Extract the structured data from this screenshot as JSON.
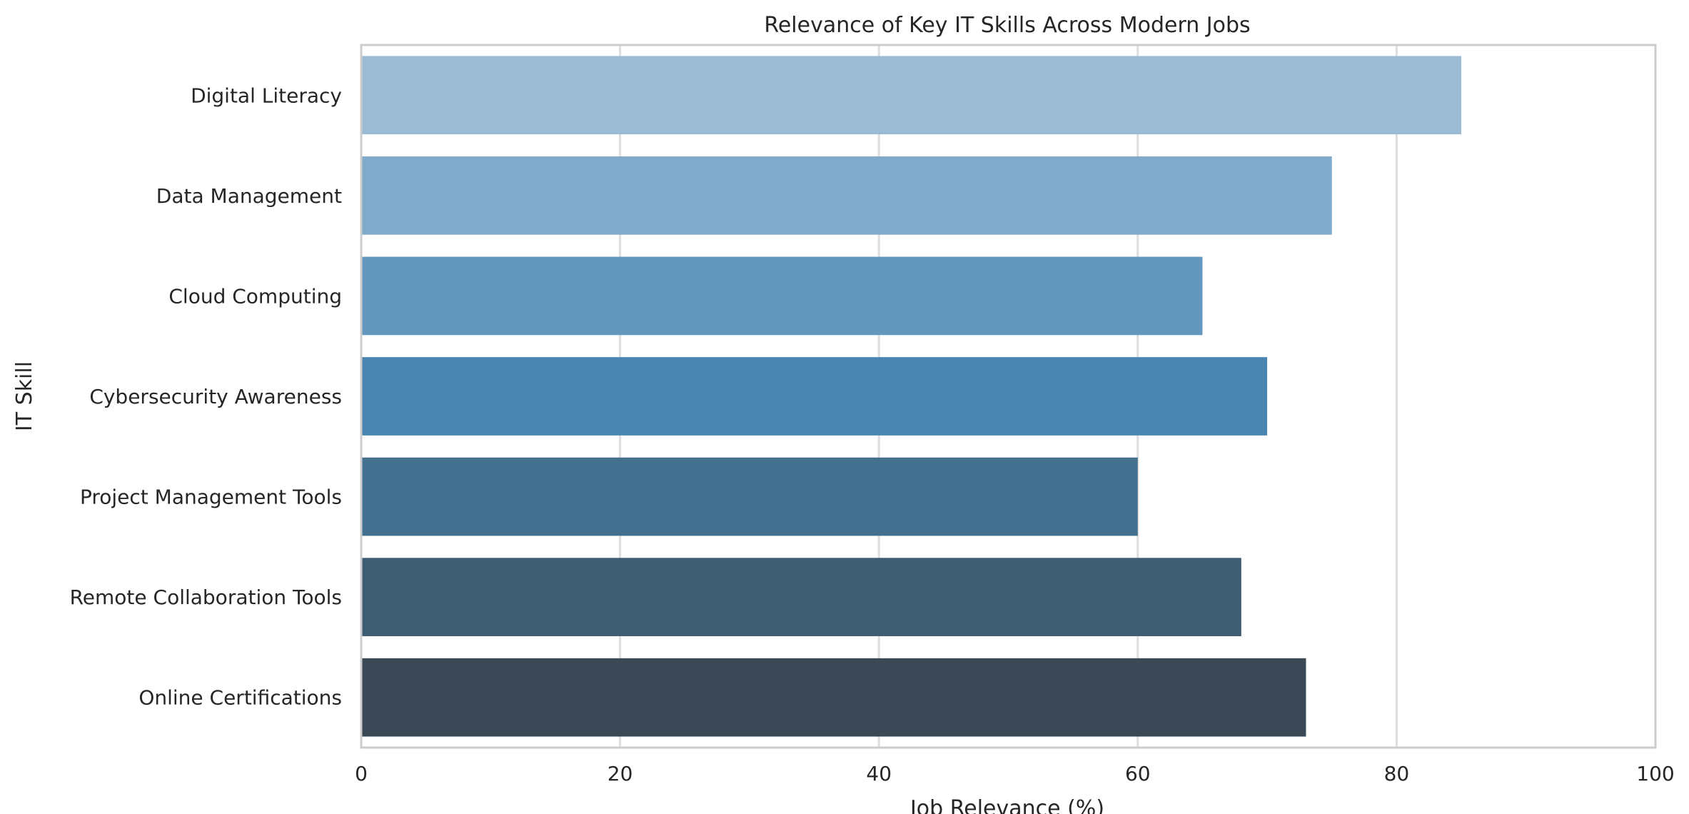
{
  "chart_data": {
    "type": "bar",
    "orientation": "horizontal",
    "title": "Relevance of Key IT Skills Across Modern Jobs",
    "xlabel": "Job Relevance (%)",
    "ylabel": "IT Skill",
    "xlim": [
      0,
      100
    ],
    "xticks": [
      0,
      20,
      40,
      60,
      80,
      100
    ],
    "grid": true,
    "categories": [
      "Digital Literacy",
      "Data Management",
      "Cloud Computing",
      "Cybersecurity Awareness",
      "Project Management Tools",
      "Remote Collaboration Tools",
      "Online Certifications"
    ],
    "values": [
      85,
      75,
      65,
      70,
      60,
      68,
      73
    ],
    "colors": [
      "#9bbbd5",
      "#7faac9",
      "#6497bd",
      "#4a85b1",
      "#44708f",
      "#3e5c72",
      "#3a4955"
    ]
  }
}
